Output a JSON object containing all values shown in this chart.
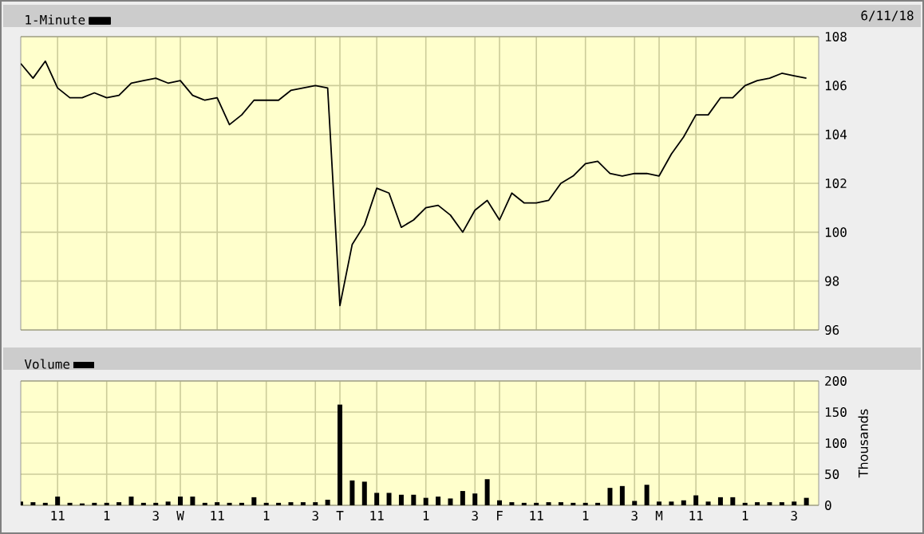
{
  "chart_data": [
    {
      "type": "line",
      "legend": "top left",
      "grid": true,
      "annotations": [
        "6/11/18"
      ],
      "ylim": [
        96,
        108
      ],
      "yticks": [
        96,
        98,
        100,
        102,
        104,
        106,
        108
      ],
      "categories": [
        null,
        null,
        null,
        null,
        null,
        null,
        null,
        null,
        null,
        null,
        null,
        null,
        null,
        null,
        null,
        null,
        null,
        null,
        null,
        null,
        null,
        null,
        null,
        null,
        null,
        null,
        null,
        null,
        null,
        null,
        null,
        null,
        null,
        null,
        null,
        null,
        null,
        null,
        null,
        null,
        null,
        null,
        null,
        null,
        null,
        null,
        null,
        null,
        null,
        null,
        null,
        null,
        null,
        null,
        null,
        null,
        null,
        null,
        null,
        null,
        null,
        null,
        null,
        null,
        null
      ],
      "series": [
        {
          "name": "1-Minute",
          "color": "#000000",
          "values": [
            106.9,
            106.3,
            107.0,
            105.9,
            105.5,
            105.5,
            105.7,
            105.5,
            105.6,
            106.1,
            106.2,
            106.3,
            106.1,
            106.2,
            105.6,
            105.4,
            105.5,
            104.4,
            104.8,
            105.4,
            105.4,
            105.4,
            105.8,
            105.9,
            106.0,
            105.9,
            97.0,
            99.5,
            100.3,
            101.8,
            101.6,
            100.2,
            100.5,
            101.0,
            101.1,
            100.7,
            100.0,
            100.9,
            101.3,
            100.5,
            101.6,
            101.2,
            101.2,
            101.3,
            102.0,
            102.3,
            102.8,
            102.9,
            102.4,
            102.3,
            102.4,
            102.4,
            102.3,
            103.2,
            103.9,
            104.8,
            104.8,
            105.5,
            105.5,
            106.0,
            106.2,
            106.3,
            106.5,
            106.4,
            106.3
          ]
        }
      ]
    },
    {
      "type": "bar",
      "legend": "top left",
      "grid": true,
      "ylabel": "Thousands",
      "ylim": [
        0,
        200
      ],
      "yticks": [
        0,
        50,
        100,
        150,
        200
      ],
      "categories": [
        null,
        null,
        null,
        "11",
        null,
        null,
        null,
        "1",
        null,
        null,
        null,
        "3",
        null,
        "W",
        null,
        null,
        "11",
        null,
        null,
        null,
        "1",
        null,
        null,
        null,
        "3",
        null,
        "T",
        null,
        null,
        "11",
        null,
        null,
        null,
        "1",
        null,
        null,
        null,
        "3",
        null,
        "F",
        null,
        null,
        "11",
        null,
        null,
        null,
        "1",
        null,
        null,
        null,
        "3",
        null,
        "M",
        null,
        null,
        "11",
        null,
        null,
        null,
        "1",
        null,
        null,
        null,
        "3",
        null
      ],
      "series": [
        {
          "name": "Volume",
          "color": "#000000",
          "values": [
            6,
            5,
            4,
            14,
            4,
            3,
            4,
            4,
            5,
            14,
            4,
            4,
            6,
            14,
            14,
            4,
            5,
            4,
            4,
            13,
            4,
            4,
            5,
            5,
            5,
            9,
            162,
            40,
            38,
            20,
            20,
            17,
            17,
            12,
            14,
            11,
            23,
            19,
            42,
            8,
            5,
            4,
            4,
            5,
            5,
            4,
            4,
            4,
            28,
            31,
            7,
            33,
            6,
            6,
            8,
            16,
            6,
            13,
            13,
            4,
            5,
            5,
            5,
            6,
            12
          ]
        }
      ]
    }
  ]
}
